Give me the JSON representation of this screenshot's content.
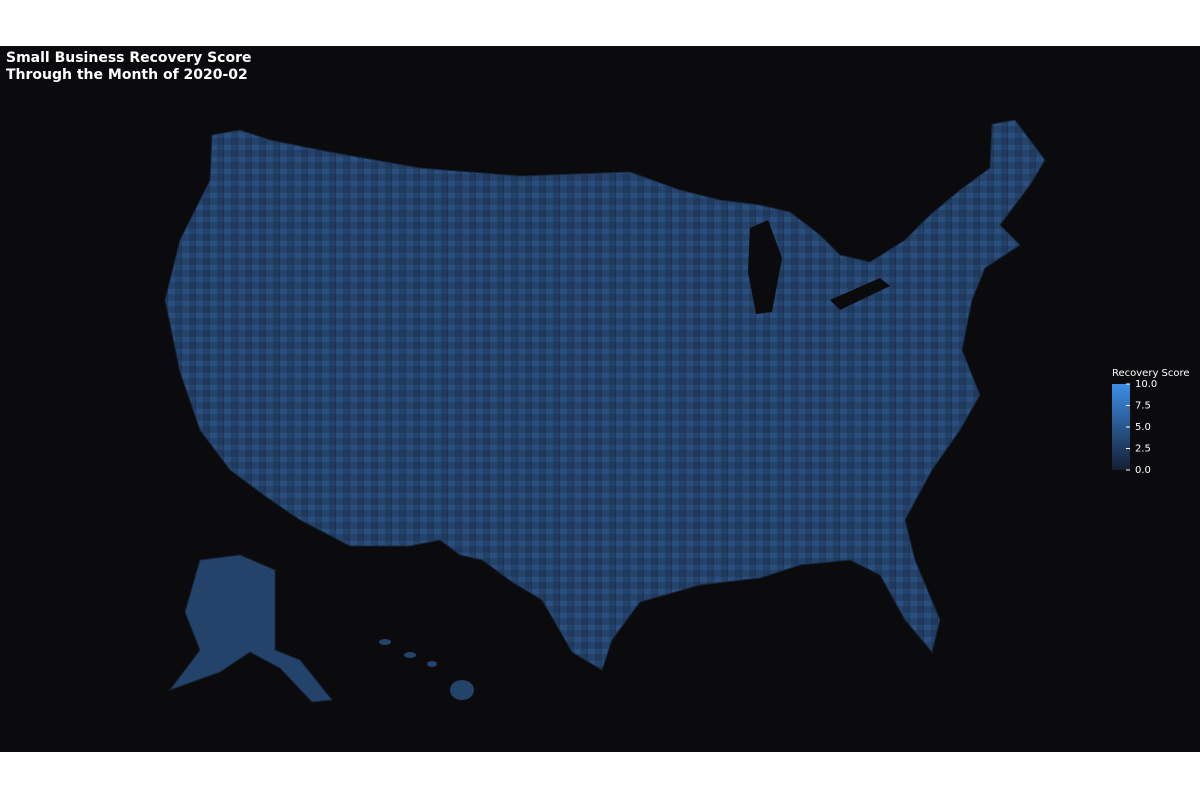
{
  "map": {
    "title_lines": [
      "Small Business Recovery Score",
      "Through the Month of 2020-02"
    ],
    "colorbar": {
      "title": "Recovery Score",
      "lim": [
        0,
        10
      ],
      "ticks": [
        {
          "value": 0,
          "label": "0.0"
        },
        2.5,
        {
          "value": 5,
          "label": "5.0"
        },
        7.5,
        {
          "value": 10,
          "label": "10.0"
        }
      ],
      "colors": [
        "#141f33",
        "#3d8ee8"
      ]
    }
  }
}
